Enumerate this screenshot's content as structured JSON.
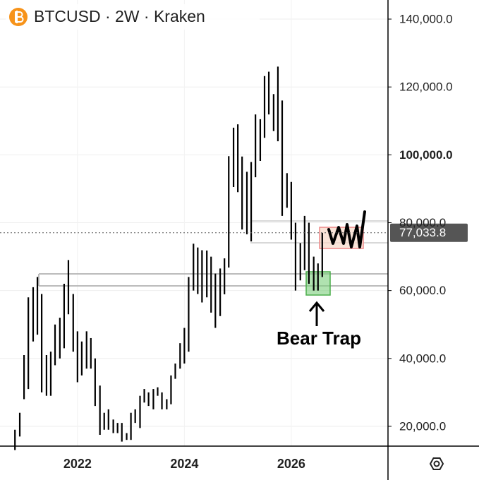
{
  "chart_data": {
    "type": "hilo",
    "title": "BTCUSD · 2W · Kraken",
    "annotation": "Bear Trap",
    "color": "#000000",
    "grid": true,
    "xlim": [
      2020.55,
      2027.81
    ],
    "xticks": [
      2022,
      2024,
      2026
    ],
    "ylim": [
      14167,
      145625
    ],
    "yticks": [
      {
        "value": 20000,
        "label": "20,000.0"
      },
      {
        "value": 40000,
        "label": "40,000.0"
      },
      {
        "value": 60000,
        "label": "60,000.0"
      },
      {
        "value": 80000,
        "label": "80,000.0"
      },
      {
        "value": 100000,
        "label": "100,000.0"
      },
      {
        "value": 120000,
        "label": "120,000.0"
      },
      {
        "value": 140000,
        "label": "140,000.0"
      }
    ],
    "last_price": {
      "value": 77033.8,
      "label": "77,033.8"
    },
    "x": [
      2020.83,
      2020.92,
      2021.0,
      2021.08,
      2021.17,
      2021.25,
      2021.33,
      2021.42,
      2021.5,
      2021.58,
      2021.67,
      2021.75,
      2021.83,
      2021.92,
      2022.0,
      2022.08,
      2022.17,
      2022.25,
      2022.33,
      2022.42,
      2022.5,
      2022.58,
      2022.67,
      2022.75,
      2022.83,
      2022.92,
      2023.0,
      2023.08,
      2023.17,
      2023.25,
      2023.33,
      2023.42,
      2023.5,
      2023.58,
      2023.67,
      2023.75,
      2023.83,
      2023.92,
      2024.0,
      2024.08,
      2024.17,
      2024.25,
      2024.33,
      2024.42,
      2024.5,
      2024.58,
      2024.67,
      2024.75,
      2024.83,
      2024.92,
      2025.0,
      2025.08,
      2025.17,
      2025.25,
      2025.33,
      2025.42,
      2025.5,
      2025.58,
      2025.67,
      2025.75,
      2025.83,
      2025.92,
      2026.0,
      2026.08,
      2026.17,
      2026.25,
      2026.33,
      2026.42,
      2026.5,
      2026.58
    ],
    "high": [
      19000,
      24000,
      41000,
      58000,
      61000,
      64000,
      59000,
      41000,
      42000,
      50000,
      52000,
      62000,
      69000,
      59000,
      48000,
      45000,
      48000,
      46000,
      40000,
      32000,
      24000,
      25000,
      22000,
      21000,
      21000,
      18000,
      24000,
      25000,
      29000,
      31000,
      30000,
      31000,
      31500,
      30000,
      28000,
      35000,
      38500,
      44500,
      49000,
      64000,
      73800,
      72700,
      71900,
      71800,
      70000,
      65000,
      66500,
      69500,
      99600,
      108000,
      109000,
      99500,
      95000,
      97900,
      111900,
      110500,
      123200,
      124500,
      117900,
      126000,
      116000,
      94600,
      92000,
      80000,
      74000,
      82000,
      80000,
      70000,
      68000,
      77000
    ],
    "low": [
      13000,
      17000,
      28000,
      31000,
      45000,
      47000,
      30000,
      29000,
      29000,
      38000,
      40000,
      43000,
      53000,
      42000,
      33000,
      35000,
      37000,
      37000,
      26000,
      17500,
      19000,
      19000,
      18000,
      18000,
      15500,
      16000,
      16000,
      21000,
      19500,
      27000,
      26000,
      25000,
      29000,
      25000,
      25000,
      26500,
      34000,
      37000,
      38500,
      42000,
      60000,
      59000,
      56500,
      58000,
      53500,
      49000,
      52500,
      58900,
      66800,
      90500,
      89000,
      78000,
      76600,
      74500,
      93400,
      98200,
      105000,
      111900,
      107000,
      104000,
      82000,
      84400,
      75000,
      60000,
      63000,
      66000,
      62000,
      60000,
      60000,
      64000
    ]
  }
}
